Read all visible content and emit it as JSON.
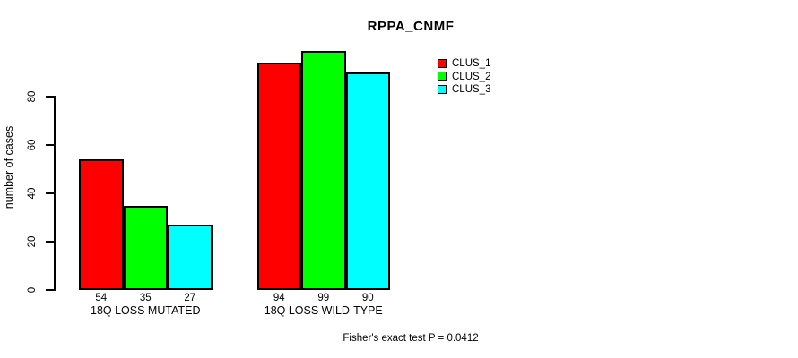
{
  "title": "RPPA_CNMF",
  "chart_data": {
    "type": "bar",
    "title": "RPPA_CNMF",
    "categories": [
      "18Q LOSS MUTATED",
      "18Q LOSS WILD-TYPE"
    ],
    "series": [
      {
        "name": "CLUS_1",
        "color": "#ff0000",
        "values": [
          54,
          94
        ]
      },
      {
        "name": "CLUS_2",
        "color": "#00ff00",
        "values": [
          35,
          99
        ]
      },
      {
        "name": "CLUS_3",
        "color": "#00ffff",
        "values": [
          27,
          90
        ]
      }
    ],
    "xlabel": "",
    "ylabel": "number of cases",
    "yticks": [
      0,
      20,
      40,
      60,
      80
    ],
    "ylim": [
      0,
      80
    ],
    "grid": false,
    "legend_position": "top-right",
    "bar_value_labels_shown": true
  },
  "annotation": {
    "stat_text": "Fisher's exact test P = 0.0412"
  }
}
